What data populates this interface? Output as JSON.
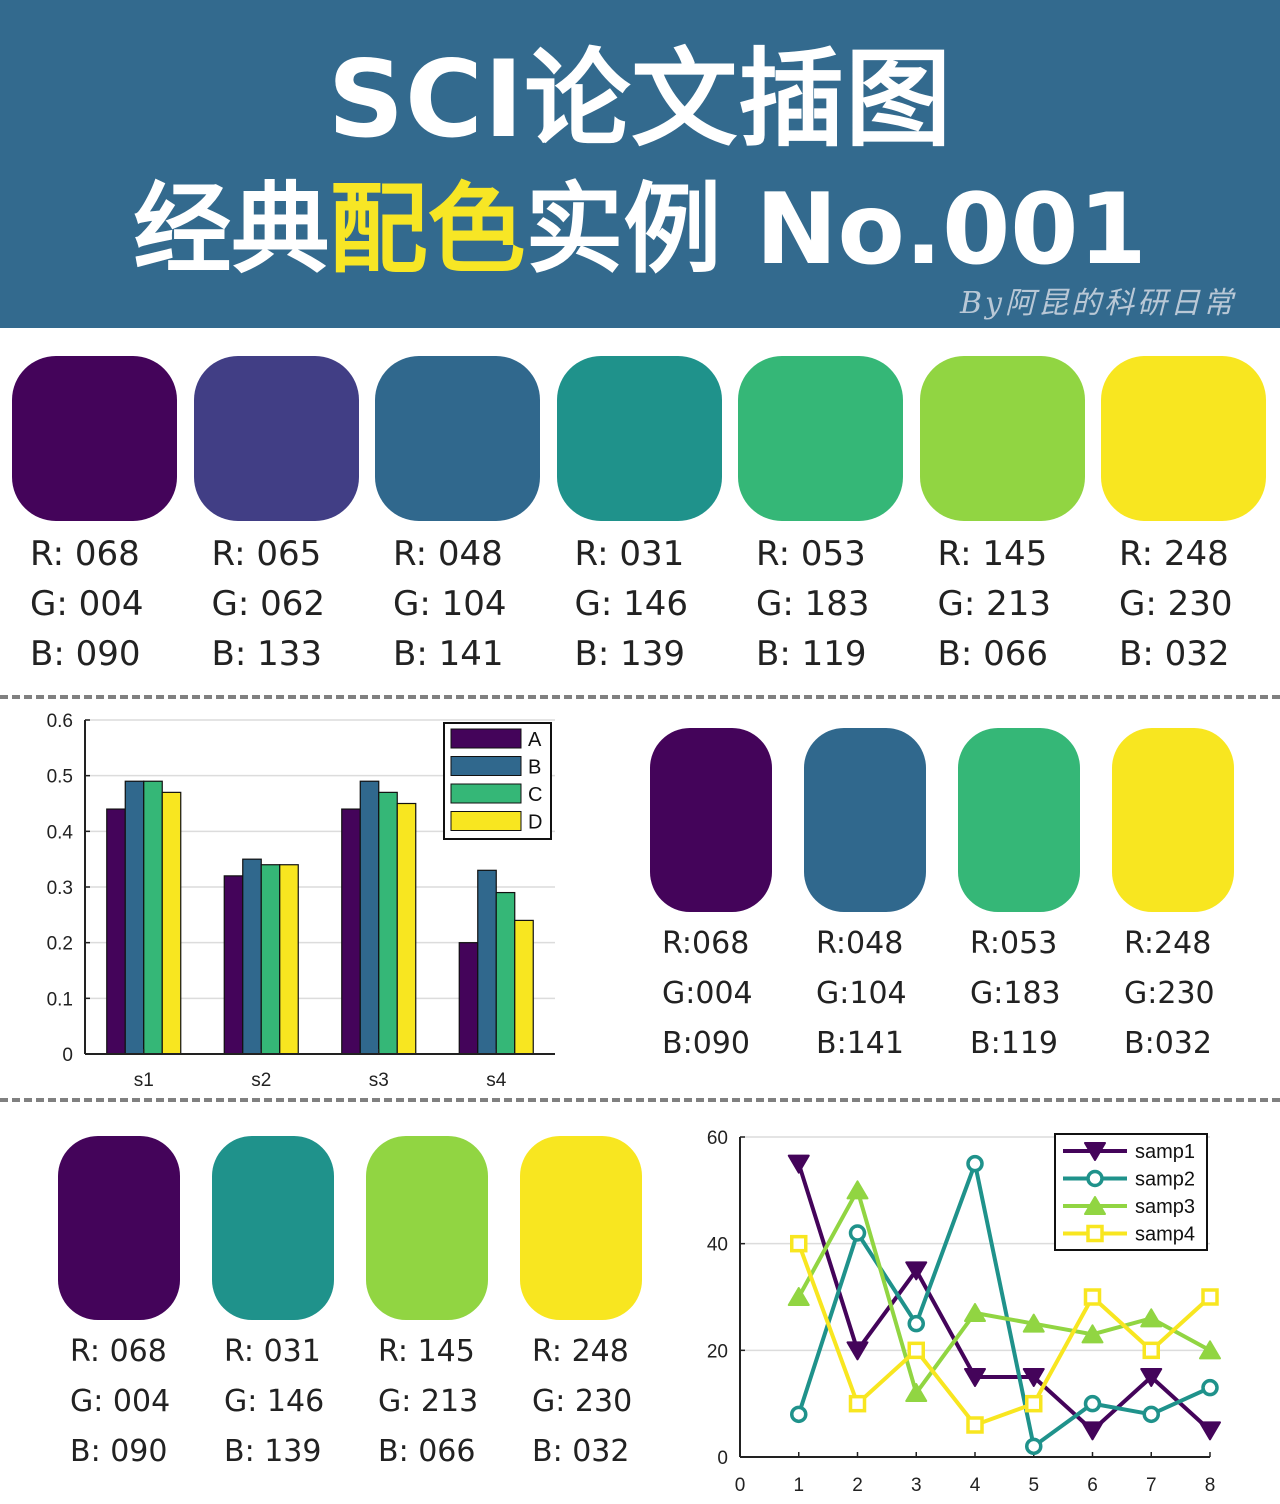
{
  "header": {
    "title_line1": "SCI论文插图",
    "title_line2_a": "经典",
    "title_line2_b": "配色",
    "title_line2_c": "实例 No.001",
    "byline": "By阿昆的科研日常"
  },
  "palette_main": [
    {
      "color": "#44045a",
      "r": "R: 068",
      "g": "G: 004",
      "b": "B: 090"
    },
    {
      "color": "#413e85",
      "r": "R: 065",
      "g": "G: 062",
      "b": "B: 133"
    },
    {
      "color": "#30688d",
      "r": "R: 048",
      "g": "G: 104",
      "b": "B: 141"
    },
    {
      "color": "#1f928b",
      "r": "R: 031",
      "g": "G: 146",
      "b": "B: 139"
    },
    {
      "color": "#35b777",
      "r": "R: 053",
      "g": "G: 183",
      "b": "B: 119"
    },
    {
      "color": "#91d542",
      "r": "R: 145",
      "g": "G: 213",
      "b": "B: 066"
    },
    {
      "color": "#f8e620",
      "r": "R: 248",
      "g": "G: 230",
      "b": "B: 032"
    }
  ],
  "palette_four_a": [
    {
      "color": "#44045a",
      "r": "R:068",
      "g": "G:004",
      "b": "B:090"
    },
    {
      "color": "#30688d",
      "r": "R:048",
      "g": "G:104",
      "b": "B:141"
    },
    {
      "color": "#35b777",
      "r": "R:053",
      "g": "G:183",
      "b": "B:119"
    },
    {
      "color": "#f8e620",
      "r": "R:248",
      "g": "G:230",
      "b": "B:032"
    }
  ],
  "palette_four_b": [
    {
      "color": "#44045a",
      "r": "R: 068",
      "g": "G: 004",
      "b": "B: 090"
    },
    {
      "color": "#1f928b",
      "r": "R: 031",
      "g": "G: 146",
      "b": "B: 139"
    },
    {
      "color": "#91d542",
      "r": "R: 145",
      "g": "G: 213",
      "b": "B: 066"
    },
    {
      "color": "#f8e620",
      "r": "R: 248",
      "g": "G: 230",
      "b": "B: 032"
    }
  ],
  "chart_data": [
    {
      "type": "bar",
      "categories": [
        "s1",
        "s2",
        "s3",
        "s4"
      ],
      "series": [
        {
          "name": "A",
          "color": "#44045a",
          "values": [
            0.44,
            0.32,
            0.44,
            0.2
          ]
        },
        {
          "name": "B",
          "color": "#30688d",
          "values": [
            0.49,
            0.35,
            0.49,
            0.33
          ]
        },
        {
          "name": "C",
          "color": "#35b777",
          "values": [
            0.49,
            0.34,
            0.47,
            0.29
          ]
        },
        {
          "name": "D",
          "color": "#f8e620",
          "values": [
            0.47,
            0.34,
            0.45,
            0.24
          ]
        }
      ],
      "ylim": [
        0,
        0.6
      ],
      "yticks": [
        "0",
        "0.1",
        "0.2",
        "0.3",
        "0.4",
        "0.5",
        "0.6"
      ],
      "grid": true,
      "legend": "top-right"
    },
    {
      "type": "line",
      "x": [
        1,
        2,
        3,
        4,
        5,
        6,
        7,
        8
      ],
      "series": [
        {
          "name": "samp1",
          "color": "#44045a",
          "marker": "triangle-down",
          "values": [
            55,
            20,
            35,
            15,
            15,
            5,
            15,
            5
          ]
        },
        {
          "name": "samp2",
          "color": "#1f928b",
          "marker": "circle",
          "values": [
            8,
            42,
            25,
            55,
            2,
            10,
            8,
            13
          ]
        },
        {
          "name": "samp3",
          "color": "#91d542",
          "marker": "triangle-up",
          "values": [
            30,
            50,
            12,
            27,
            25,
            23,
            26,
            20
          ]
        },
        {
          "name": "samp4",
          "color": "#f8e620",
          "marker": "square",
          "values": [
            40,
            10,
            20,
            6,
            10,
            30,
            20,
            30
          ]
        }
      ],
      "xlim": [
        0,
        8
      ],
      "ylim": [
        0,
        60
      ],
      "xticks": [
        "0",
        "1",
        "2",
        "3",
        "4",
        "5",
        "6",
        "7",
        "8"
      ],
      "yticks": [
        "0",
        "20",
        "40",
        "60"
      ],
      "grid": true,
      "legend": "top-right"
    }
  ]
}
